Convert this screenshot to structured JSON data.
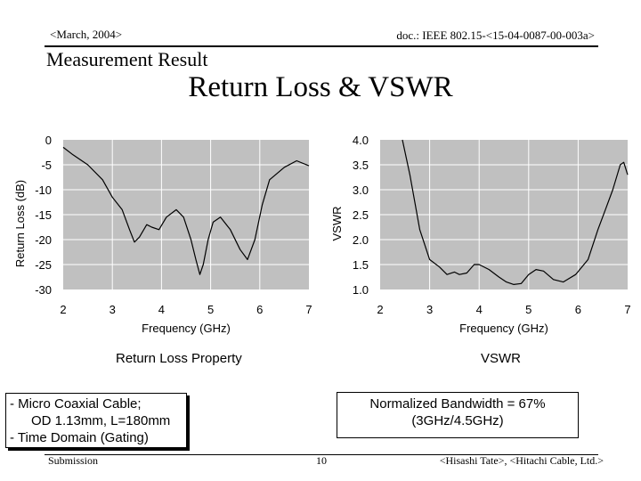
{
  "header": {
    "date": "<March, 2004>",
    "doc": "doc.: IEEE 802.15-<15-04-0087-00-003a>"
  },
  "subtitle": "Measurement Result",
  "title": "Return Loss & VSWR",
  "chart_data": [
    {
      "type": "line",
      "xlabel": "Frequency (GHz)",
      "ylabel": "Return Loss (dB)",
      "xlim": [
        2,
        7
      ],
      "ylim": [
        -30,
        0
      ],
      "xticks": [
        "2",
        "3",
        "4",
        "5",
        "6",
        "7"
      ],
      "yticks": [
        "0",
        "-5",
        "-10",
        "-15",
        "-20",
        "-25",
        "-30"
      ],
      "grid": true,
      "caption": "Return Loss Property",
      "series": [
        {
          "x": [
            2.0,
            2.2,
            2.5,
            2.8,
            3.0,
            3.2,
            3.35,
            3.45,
            3.55,
            3.7,
            3.8,
            3.95,
            4.1,
            4.3,
            4.45,
            4.6,
            4.7,
            4.78,
            4.85,
            4.95,
            5.05,
            5.2,
            5.4,
            5.6,
            5.75,
            5.9,
            6.05,
            6.2,
            6.5,
            6.75,
            7.0
          ],
          "y": [
            -1.5,
            -3,
            -5,
            -8,
            -11.5,
            -14,
            -18,
            -20.5,
            -19.5,
            -17,
            -17.5,
            -18,
            -15.5,
            -14,
            -15.5,
            -20,
            -24,
            -27,
            -25,
            -20,
            -16.5,
            -15.5,
            -18,
            -22,
            -24,
            -20,
            -13,
            -8,
            -5.5,
            -4.2,
            -5.2
          ]
        }
      ]
    },
    {
      "type": "line",
      "xlabel": "Frequency (GHz)",
      "ylabel": "VSWR",
      "xlim": [
        2,
        7
      ],
      "ylim": [
        1.0,
        4.0
      ],
      "xticks": [
        "2",
        "3",
        "4",
        "5",
        "6",
        "7"
      ],
      "yticks": [
        "4.0",
        "3.5",
        "3.0",
        "2.5",
        "2.0",
        "1.5",
        "1.0"
      ],
      "grid": true,
      "caption": "VSWR",
      "series": [
        {
          "x": [
            2.45,
            2.6,
            2.8,
            3.0,
            3.2,
            3.35,
            3.5,
            3.6,
            3.75,
            3.9,
            4.0,
            4.2,
            4.4,
            4.55,
            4.7,
            4.85,
            5.0,
            5.15,
            5.3,
            5.5,
            5.7,
            5.95,
            6.2,
            6.4,
            6.55,
            6.7,
            6.85,
            6.92,
            7.0
          ],
          "y": [
            4.0,
            3.3,
            2.2,
            1.6,
            1.45,
            1.3,
            1.35,
            1.3,
            1.33,
            1.5,
            1.5,
            1.4,
            1.25,
            1.15,
            1.1,
            1.12,
            1.3,
            1.4,
            1.37,
            1.2,
            1.15,
            1.3,
            1.6,
            2.2,
            2.6,
            3.0,
            3.5,
            3.55,
            3.3
          ]
        }
      ]
    }
  ],
  "notes": {
    "line1": "- Micro Coaxial Cable;",
    "line2": "OD 1.13mm, L=180mm",
    "line3": "- Time Domain (Gating)"
  },
  "bandwidth": {
    "line1": "Normalized Bandwidth = 67%",
    "line2": "(3GHz/4.5GHz)"
  },
  "footer": {
    "submission": "Submission",
    "page": "10",
    "author": "<Hisashi Tate>, <Hitachi Cable, Ltd.>"
  },
  "colors": {
    "plot_bg": "#c0c0c0",
    "grid": "#ffffff",
    "line": "#000000"
  }
}
